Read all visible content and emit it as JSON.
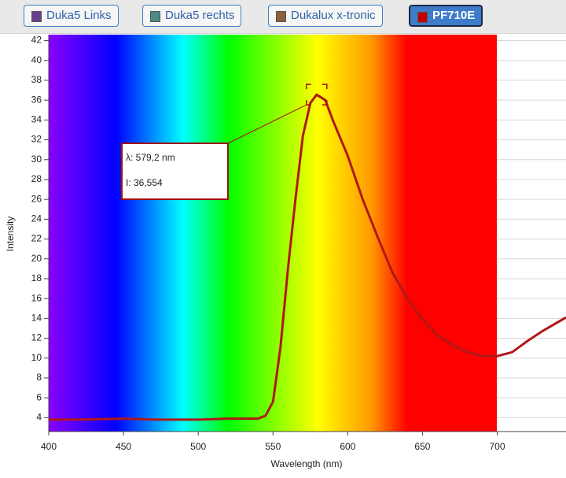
{
  "toolbar": {
    "buttons": [
      {
        "label": "Duka5 Links",
        "color": "#6b3f8e",
        "selected": false
      },
      {
        "label": "Duka5 rechts",
        "color": "#4f8a86",
        "selected": false
      },
      {
        "label": "Dukalux x-tronic",
        "color": "#8b5e3c",
        "selected": false
      },
      {
        "label": "PF710E",
        "color": "#c00000",
        "selected": true
      }
    ]
  },
  "chart_data": {
    "type": "line",
    "x_label": "Wavelength (nm)",
    "y_label": "Intensity",
    "annotation": [
      "λ: 579,2 nm",
      "I: 36,554"
    ],
    "series": [
      {
        "color": "#b01818",
        "x": [
          400,
          420,
          450,
          470,
          500,
          520,
          530,
          540,
          545,
          550,
          555,
          560,
          565,
          570,
          575,
          579.2,
          585,
          590,
          600,
          610,
          620,
          630,
          640,
          650,
          660,
          670,
          680,
          690,
          700,
          710,
          720,
          730,
          746
        ],
        "values": [
          3.8,
          3.8,
          3.9,
          3.8,
          3.8,
          3.9,
          3.9,
          3.9,
          4.2,
          5.6,
          11.1,
          19,
          26,
          32.4,
          35.7,
          36.554,
          36,
          34,
          30.4,
          26,
          22.2,
          18.6,
          16,
          13.9,
          12.3,
          11.3,
          10.6,
          10.2,
          10.2,
          10.6,
          11.7,
          12.7,
          14.1
        ]
      }
    ],
    "xlim": [
      400,
      746
    ],
    "ylim": [
      2.6,
      42.6
    ],
    "xticks": [
      400,
      450,
      500,
      550,
      600,
      650,
      700
    ],
    "yticks": [
      4,
      6,
      8,
      10,
      12,
      14,
      16,
      18,
      20,
      22,
      24,
      26,
      28,
      30,
      32,
      34,
      36,
      38,
      40,
      42
    ],
    "grid": true
  }
}
